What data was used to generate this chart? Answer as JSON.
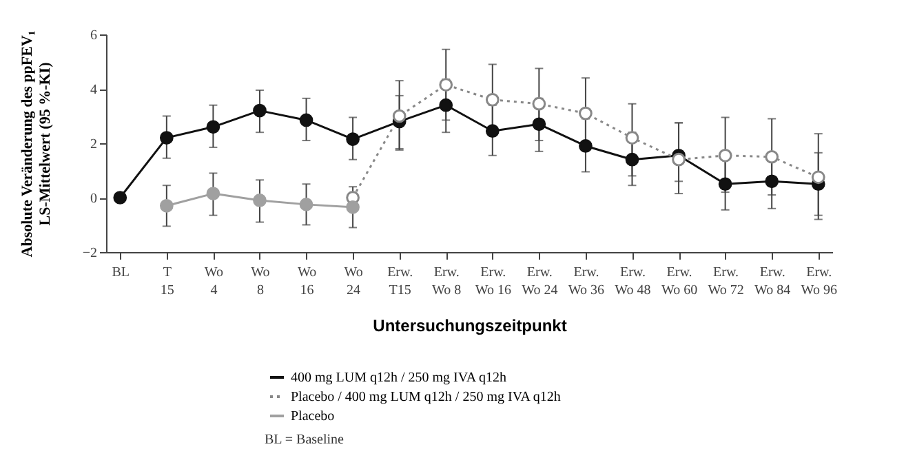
{
  "chart_data": {
    "type": "line",
    "xlabel": "Untersuchungszeitpunkt",
    "ylabel": "Absolute Veränderung des ppFEV₁\nLS-Mittelwert (95 %-KI)",
    "ylim": [
      -2,
      6
    ],
    "yticks": [
      -2,
      0,
      2,
      4,
      6
    ],
    "categories": [
      "BL",
      "T\n15",
      "Wo\n4",
      "Wo\n8",
      "Wo\n16",
      "Wo\n24",
      "Erw.\nT15",
      "Erw.\nWo 8",
      "Erw.\nWo 16",
      "Erw.\nWo 24",
      "Erw.\nWo 36",
      "Erw.\nWo 48",
      "Erw.\nWo 60",
      "Erw.\nWo 72",
      "Erw.\nWo 84",
      "Erw.\nWo 96"
    ],
    "marker": "circle",
    "grid": false,
    "legend": "bottom",
    "series": [
      {
        "name": "400 mg LUM q12h / 250 mg IVA q12h",
        "color": "#111111",
        "line_style": "solid",
        "values": [
          0,
          2.2,
          2.6,
          3.2,
          2.85,
          2.15,
          2.8,
          3.4,
          2.45,
          2.7,
          1.9,
          1.4,
          1.55,
          0.5,
          0.6,
          0.5
        ],
        "errors": [
          null,
          [
            1.45,
            3.0
          ],
          [
            1.85,
            3.4
          ],
          [
            2.4,
            3.95
          ],
          [
            2.1,
            3.65
          ],
          [
            1.4,
            2.95
          ],
          [
            1.8,
            3.75
          ],
          [
            2.4,
            4.35
          ],
          [
            1.55,
            3.4
          ],
          [
            1.7,
            3.65
          ],
          [
            0.95,
            2.9
          ],
          [
            0.45,
            2.4
          ],
          [
            0.6,
            2.75
          ],
          [
            -0.45,
            1.45
          ],
          [
            -0.4,
            1.45
          ],
          [
            -0.65,
            1.65
          ]
        ]
      },
      {
        "name": "Placebo / 400 mg LUM q12h / 250 mg IVA q12h",
        "color": "#888888",
        "line_style": "dotted",
        "values": [
          null,
          null,
          null,
          null,
          null,
          0,
          3.0,
          4.15,
          3.6,
          3.45,
          3.1,
          2.2,
          1.4,
          1.55,
          1.5,
          0.75
        ],
        "errors": [
          null,
          null,
          null,
          null,
          null,
          null,
          [
            1.75,
            4.3
          ],
          [
            2.85,
            5.45
          ],
          [
            2.3,
            4.9
          ],
          [
            2.1,
            4.75
          ],
          [
            1.75,
            4.4
          ],
          [
            0.8,
            3.45
          ],
          [
            0.15,
            2.75
          ],
          [
            0.2,
            2.95
          ],
          [
            0.1,
            2.9
          ],
          [
            -0.8,
            2.35
          ]
        ]
      },
      {
        "name": "Placebo",
        "color": "#a0a0a0",
        "line_style": "solid",
        "values": [
          null,
          -0.3,
          0.15,
          -0.1,
          -0.25,
          -0.35,
          null,
          null,
          null,
          null,
          null,
          null,
          null,
          null,
          null,
          null
        ],
        "errors": [
          null,
          [
            -1.05,
            0.45
          ],
          [
            -0.65,
            0.9
          ],
          [
            -0.9,
            0.65
          ],
          [
            -1.0,
            0.5
          ],
          [
            -1.1,
            0.4
          ],
          null,
          null,
          null,
          null,
          null,
          null,
          null,
          null,
          null,
          null
        ]
      }
    ],
    "annotations": [
      "BL =        Baseline"
    ]
  }
}
